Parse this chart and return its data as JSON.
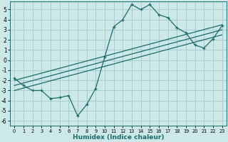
{
  "title": "",
  "xlabel": "Humidex (Indice chaleur)",
  "bg_color": "#cce8e8",
  "grid_color": "#aacccc",
  "line_color": "#1a6b6b",
  "xlim": [
    -0.5,
    23.5
  ],
  "ylim": [
    -6.5,
    5.8
  ],
  "xticks": [
    0,
    1,
    2,
    3,
    4,
    5,
    6,
    7,
    8,
    9,
    10,
    11,
    12,
    13,
    14,
    15,
    16,
    17,
    18,
    19,
    20,
    21,
    22,
    23
  ],
  "yticks": [
    -6,
    -5,
    -4,
    -3,
    -2,
    -1,
    0,
    1,
    2,
    3,
    4,
    5
  ],
  "curve_x": [
    0,
    1,
    2,
    3,
    4,
    5,
    6,
    7,
    8,
    9,
    10,
    11,
    12,
    13,
    14,
    15,
    16,
    17,
    18,
    19,
    20,
    21,
    22,
    23
  ],
  "curve_y": [
    -1.8,
    -2.5,
    -3.0,
    -3.0,
    -3.8,
    -3.7,
    -3.5,
    -5.5,
    -4.4,
    -2.8,
    0.3,
    3.3,
    4.0,
    5.5,
    5.0,
    5.5,
    4.5,
    4.2,
    3.2,
    2.7,
    1.5,
    1.2,
    2.1,
    3.4
  ],
  "line1_x": [
    0,
    23
  ],
  "line1_y": [
    -3.0,
    2.5
  ],
  "line2_x": [
    0,
    23
  ],
  "line2_y": [
    -2.5,
    3.0
  ],
  "line3_x": [
    0,
    23
  ],
  "line3_y": [
    -2.0,
    3.5
  ]
}
